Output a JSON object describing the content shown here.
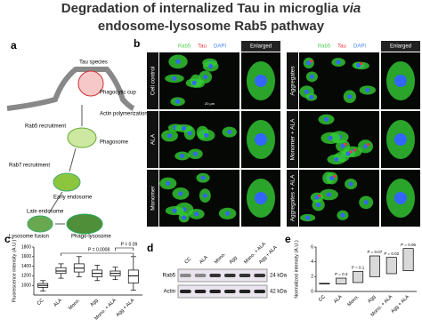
{
  "title": {
    "line1": "Degradation of internalized  Tau in microglia",
    "italic": "via",
    "line2": "endosome-lysosome Rab5 pathway"
  },
  "panel_a": {
    "letter": "a",
    "labels": [
      "Tau species",
      "Phagocytic cup",
      "Actin polymerization",
      "Rab5 recruitment",
      "Phagosome",
      "Rab7 recruitment",
      "Early endosome",
      "Late endosome",
      "Lysosome fusion",
      "Phago-lysosome"
    ]
  },
  "panel_b": {
    "letter": "b",
    "channels": [
      "Rab5",
      "Tau",
      "DAPI"
    ],
    "enlarged": "Enlarged",
    "scale": "20 µm",
    "left_rows": [
      "Cell control",
      "ALA",
      "Monomer"
    ],
    "right_rows": [
      "Aggregates",
      "Monomer + ALA",
      "Aggregates + ALA"
    ]
  },
  "panel_d": {
    "letter": "d",
    "lanes": [
      "CC",
      "ALA",
      "Mono.",
      "Agg",
      "Mono. + ALA",
      "Agg + ALA"
    ],
    "rows": [
      "Rab5",
      "Actin"
    ],
    "sizes": [
      "24 kDa",
      "42 kDa"
    ]
  },
  "chart_data": [
    {
      "type": "box",
      "letter": "c",
      "ylabel": "Fluorescence intensity (A.U.)",
      "categories": [
        "CC",
        "ALA",
        "Mono.",
        "Agg",
        "Mono. + ALA",
        "Agg + ALA"
      ],
      "boxes": [
        {
          "min": 880,
          "q1": 960,
          "median": 1000,
          "q3": 1040,
          "max": 1100
        },
        {
          "min": 1150,
          "q1": 1250,
          "median": 1300,
          "q3": 1370,
          "max": 1450
        },
        {
          "min": 1180,
          "q1": 1280,
          "median": 1360,
          "q3": 1450,
          "max": 1600
        },
        {
          "min": 1100,
          "q1": 1180,
          "median": 1250,
          "q3": 1320,
          "max": 1420
        },
        {
          "min": 1120,
          "q1": 1200,
          "median": 1250,
          "q3": 1300,
          "max": 1380
        },
        {
          "min": 900,
          "q1": 1050,
          "median": 1200,
          "q3": 1320,
          "max": 1600
        }
      ],
      "annotations": [
        "P = 0.0008",
        "P = 0.09"
      ],
      "ylim": [
        800,
        1800
      ],
      "yticks": [
        1000,
        1200,
        1400,
        1600,
        1800
      ]
    },
    {
      "type": "floating-bar",
      "letter": "e",
      "ylabel": "Normalized intensity (A.U.)",
      "categories": [
        "CC",
        "ALA",
        "Mono.",
        "Agg",
        "Mono. + ALA",
        "Agg + ALA"
      ],
      "low": [
        1,
        1,
        1.2,
        2,
        2.4,
        2.8
      ],
      "high": [
        1.1,
        1.8,
        2.7,
        4.8,
        4.6,
        5.8
      ],
      "annotations": [
        null,
        "P = 0.3",
        "P = 0.1",
        "P = 0.07",
        "P = 0.02",
        "P = 0.06"
      ],
      "color": "#d9d9d9",
      "ylim": [
        0,
        6
      ],
      "yticks": [
        0,
        2,
        4,
        6
      ]
    }
  ]
}
